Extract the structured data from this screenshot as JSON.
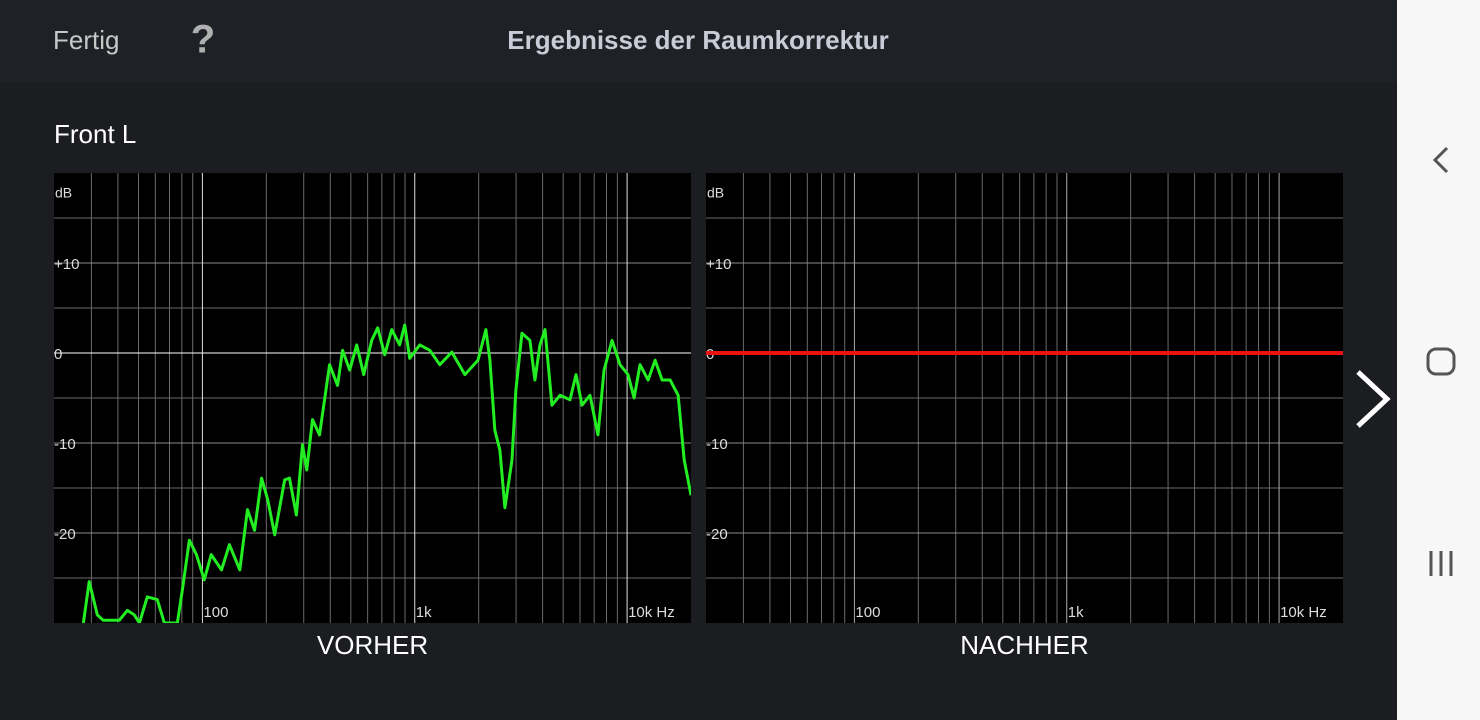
{
  "header": {
    "done": "Fertig",
    "help": "?",
    "title": "Ergebnisse der Raumkorrektur"
  },
  "channel": "Front L",
  "chart_data": [
    {
      "type": "line",
      "title": "VORHER",
      "y_label": "dB",
      "x_scale": "log",
      "grid": true,
      "minor_grid": true,
      "xlim": [
        20,
        20000
      ],
      "ylim": [
        -30,
        20
      ],
      "xticks": [
        100,
        {
          "value": 1000,
          "label": "1k"
        },
        {
          "value": 10000,
          "label": "10k Hz"
        }
      ],
      "yticks": [
        {
          "value": 10,
          "label": "+10"
        },
        0,
        -10,
        -20
      ],
      "x": [
        27.5,
        29.3,
        32,
        34.1,
        40.6,
        44.3,
        47.8,
        50.5,
        55,
        61.3,
        66.2,
        76.2,
        80.5,
        86.8,
        93.7,
        102,
        110,
        123,
        134,
        150,
        163,
        176,
        190,
        203,
        219,
        244,
        257,
        277,
        296,
        310,
        330,
        356,
        376,
        397,
        433,
        457,
        494,
        533,
        575,
        627,
        669,
        722,
        779,
        849,
        897,
        947,
        1056,
        1178,
        1312,
        1495,
        1723,
        1984,
        2163,
        2259,
        2384,
        2518,
        2658,
        2870,
        2995,
        3198,
        3486,
        3681,
        3888,
        4107,
        4428,
        4830,
        5385,
        5748,
        6132,
        6688,
        7295,
        7790,
        8496,
        9263,
        10100,
        10790,
        11510,
        12560,
        13550,
        14620,
        15950,
        17400,
        18580,
        20000
      ],
      "series": [
        {
          "color": "#22ee22",
          "values": [
            -30,
            -25.4,
            -29.1,
            -29.7,
            -29.7,
            -28.6,
            -29.1,
            -30,
            -27.1,
            -27.4,
            -30,
            -30,
            -26.3,
            -20.8,
            -22.4,
            -25.2,
            -22.4,
            -24.1,
            -21.3,
            -24.1,
            -17.4,
            -19.7,
            -13.9,
            -16.3,
            -20.2,
            -14.1,
            -13.9,
            -18,
            -10.2,
            -13,
            -7.4,
            -9.1,
            -5.2,
            -1.3,
            -3.6,
            0.3,
            -1.9,
            0.9,
            -2.4,
            1.4,
            2.8,
            -0.2,
            2.6,
            0.9,
            3.1,
            -0.6,
            0.9,
            0.3,
            -1.3,
            0.1,
            -2.4,
            -0.8,
            2.6,
            -0.8,
            -8.6,
            -10.8,
            -17.2,
            -11.9,
            -4.1,
            2.2,
            1.4,
            -3,
            0.9,
            2.6,
            -5.8,
            -4.7,
            -5.2,
            -2.4,
            -5.8,
            -4.7,
            -9.1,
            -1.9,
            1.4,
            -1.3,
            -2.4,
            -5,
            -1.3,
            -3,
            -0.8,
            -3,
            -3,
            -4.7,
            -11.9,
            -15.8
          ]
        }
      ]
    },
    {
      "type": "line",
      "title": "NACHHER",
      "y_label": "dB",
      "x_scale": "log",
      "grid": true,
      "minor_grid": true,
      "xlim": [
        20,
        20000
      ],
      "ylim": [
        -30,
        20
      ],
      "xticks": [
        100,
        {
          "value": 1000,
          "label": "1k"
        },
        {
          "value": 10000,
          "label": "10k Hz"
        }
      ],
      "yticks": [
        {
          "value": 10,
          "label": "+10"
        },
        0,
        -10,
        -20
      ],
      "x": [
        20,
        20000
      ],
      "series": [
        {
          "color": "#ee1111",
          "values": [
            0,
            0
          ]
        }
      ]
    }
  ]
}
